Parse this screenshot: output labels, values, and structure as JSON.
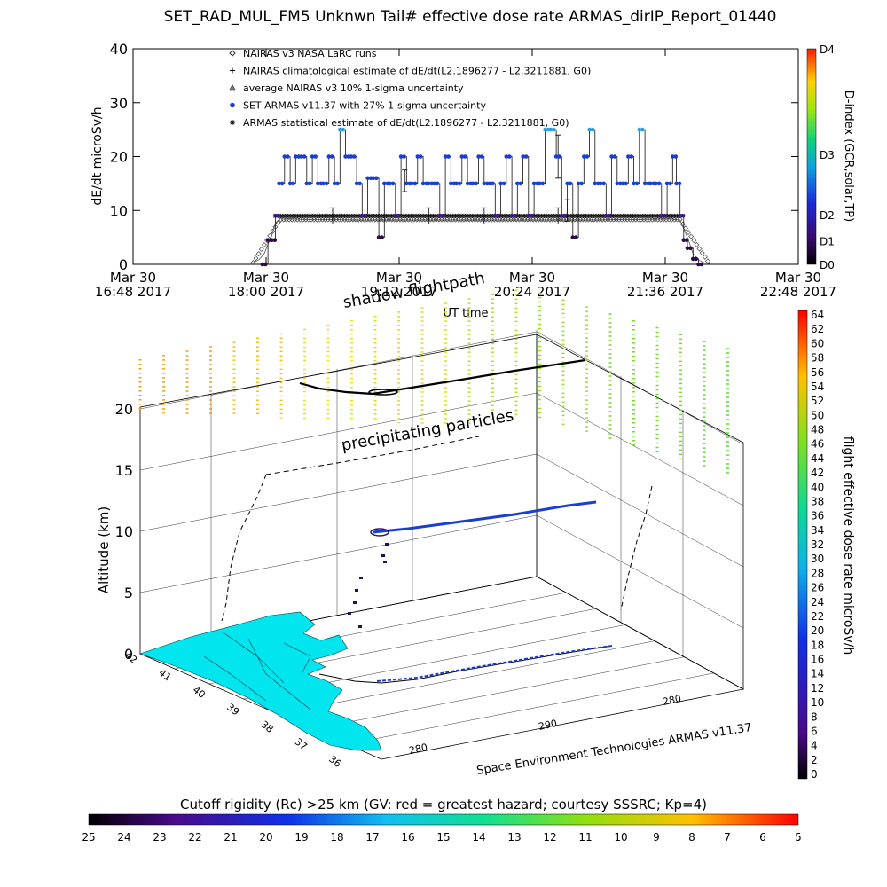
{
  "title": "SET_RAD_MUL_FM5 Unknwn Tail#  effective dose rate ARMAS_dirIP_Report_01440",
  "chart_data": [
    {
      "type": "line",
      "ylabel": "dE/dt microSv/h",
      "xlabel": "UT time",
      "ylim": [
        0,
        40
      ],
      "yticks": [
        "0",
        "10",
        "20",
        "30",
        "40"
      ],
      "xlim_min": [
        0,
        360
      ],
      "xticks": [
        {
          "min": 0,
          "line1": "Mar 30",
          "line2": "16:48 2017"
        },
        {
          "min": 72,
          "line1": "Mar 30",
          "line2": "18:00 2017"
        },
        {
          "min": 144,
          "line1": "Mar 30",
          "line2": "19:12 2017"
        },
        {
          "min": 216,
          "line1": "Mar 30",
          "line2": "20:24 2017"
        },
        {
          "min": 288,
          "line1": "Mar 30",
          "line2": "21:36 2017"
        },
        {
          "min": 360,
          "line1": "Mar 30",
          "line2": "22:48 2017"
        }
      ],
      "legend": [
        {
          "symbol": "diamond",
          "text": "NAIRAS v3 NASA LaRC runs"
        },
        {
          "symbol": "plus",
          "text": "NAIRAS climatological estimate of dE/dt(L2.1896277 - L2.3211881, G0)"
        },
        {
          "symbol": "triangle",
          "text": "average NAIRAS v3 10% 1-sigma uncertainty"
        },
        {
          "symbol": "dot",
          "color": "#1a3fd0",
          "text": "SET ARMAS v11.37 with 27% 1-sigma uncertainty"
        },
        {
          "symbol": "star",
          "text": "ARMAS statistical estimate of dE/dt(L2.1896277 - L2.3211881, G0)"
        }
      ],
      "colorbar": {
        "label": "D-index (GCR,solar,TP)",
        "ticks": [
          "D4",
          "D3",
          "D2",
          "D1",
          "D0"
        ],
        "tick_values": [
          1.0,
          0.51,
          0.23,
          0.11,
          0.0
        ]
      },
      "series": [
        {
          "name": "NAIRAS v3 NASA LaRC runs",
          "x": [
            65,
            68,
            71,
            74,
            77,
            80,
            83,
            90,
            100,
            110,
            120,
            130,
            140,
            150,
            160,
            170,
            180,
            190,
            200,
            210,
            220,
            230,
            240,
            250,
            260,
            270,
            280,
            290,
            296,
            300,
            303,
            306,
            309,
            312
          ],
          "y": [
            0.3,
            0.8,
            2.0,
            4.5,
            7.5,
            8.6,
            8.5,
            8.4,
            8.3,
            8.3,
            8.2,
            8.2,
            8.2,
            8.2,
            8.2,
            8.2,
            8.2,
            8.2,
            8.2,
            8.2,
            8.2,
            8.2,
            8.2,
            8.2,
            8.3,
            8.3,
            8.4,
            8.5,
            8.2,
            5.0,
            2.0,
            0.8,
            0.3,
            0.1
          ]
        },
        {
          "name": "ARMAS statistical estimate of dE/dt(L2.1896277 - L2.3211881, G0)",
          "x": [
            77,
            80,
            90,
            100,
            110,
            120,
            130,
            140,
            150,
            160,
            170,
            180,
            190,
            200,
            210,
            220,
            230,
            240,
            250,
            260,
            270,
            280,
            290,
            297
          ],
          "y": [
            8.8,
            9.0,
            9.0,
            9.0,
            9.0,
            9.0,
            9.0,
            9.0,
            9.0,
            9.0,
            9.0,
            9.0,
            9.0,
            9.0,
            9.0,
            9.0,
            9.0,
            9.0,
            9.0,
            9.0,
            9.0,
            9.0,
            9.0,
            9.0
          ]
        },
        {
          "name": "SET ARMAS v11.37 with 27% 1-sigma uncertainty",
          "x": [
            70,
            73,
            75,
            77,
            79,
            82,
            85,
            88,
            91,
            94,
            97,
            100,
            103,
            106,
            109,
            112,
            115,
            118,
            121,
            124,
            127,
            130,
            133,
            136,
            139,
            142,
            145,
            148,
            151,
            154,
            157,
            160,
            163,
            166,
            169,
            172,
            175,
            178,
            181,
            184,
            187,
            190,
            193,
            196,
            199,
            202,
            205,
            208,
            211,
            214,
            217,
            220,
            223,
            226,
            229,
            232,
            235,
            238,
            241,
            244,
            247,
            250,
            253,
            256,
            259,
            262,
            265,
            268,
            271,
            274,
            277,
            280,
            283,
            286,
            289,
            292,
            294,
            296,
            298,
            300,
            303,
            306
          ],
          "y": [
            0,
            4.5,
            4.5,
            9,
            15,
            20,
            15,
            20,
            20,
            15,
            20,
            15,
            15,
            20,
            15,
            25,
            20,
            20,
            15,
            9,
            16,
            16,
            5,
            15,
            15,
            9,
            20,
            15,
            15,
            20,
            15,
            15,
            15,
            9,
            20,
            15,
            15,
            20,
            15,
            15,
            20,
            15,
            15,
            9,
            15,
            20,
            9,
            15,
            20,
            9,
            15,
            15,
            25,
            25,
            20,
            9,
            15,
            5,
            15,
            20,
            25,
            15,
            15,
            9,
            20,
            15,
            15,
            20,
            15,
            25,
            15,
            15,
            15,
            9,
            15,
            20,
            15,
            9,
            4.5,
            3,
            1,
            0
          ]
        }
      ]
    },
    {
      "type": "scatter",
      "zlabel": "Altitude (km)",
      "zticks": [
        "0",
        "5",
        "10",
        "15",
        "20"
      ],
      "lat_ticks": [
        "42",
        "41",
        "40",
        "39",
        "38",
        "37",
        "36"
      ],
      "lon_ticks": [
        "280",
        "290",
        "280"
      ],
      "annotations": [
        "shadow flightpath",
        "precipitating particles"
      ],
      "credit": "Space Environment Technologies ARMAS v11.37",
      "colorbar": {
        "label": "flight effective dose rate microSv/h",
        "ticks": [
          "64",
          "62",
          "60",
          "58",
          "56",
          "54",
          "52",
          "50",
          "48",
          "46",
          "44",
          "42",
          "40",
          "38",
          "36",
          "34",
          "32",
          "30",
          "28",
          "26",
          "24",
          "22",
          "20",
          "18",
          "16",
          "14",
          "12",
          "10",
          "8",
          "6",
          "4",
          "2",
          "0"
        ],
        "range": [
          0,
          64
        ]
      }
    }
  ],
  "cutoff_bar": {
    "title": "Cutoff rigidity (Rc) >25 km (GV: red = greatest hazard; courtesy SSSRC; Kp=4)",
    "ticks": [
      "25",
      "24",
      "23",
      "22",
      "21",
      "20",
      "19",
      "18",
      "17",
      "16",
      "15",
      "14",
      "13",
      "12",
      "11",
      "10",
      "9",
      "8",
      "7",
      "6",
      "5"
    ]
  },
  "colors": {
    "armas_blue": "#1a3fd0",
    "armas_dot_fill": "#3b1a7a",
    "land": "#00e5ee"
  }
}
